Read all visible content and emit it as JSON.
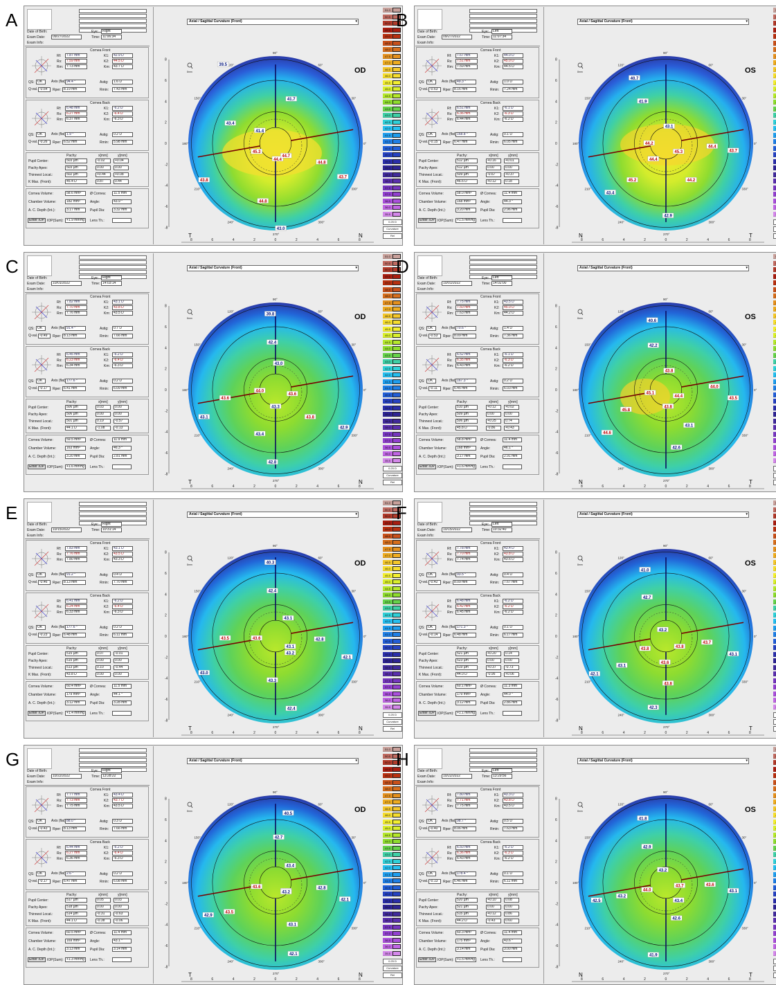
{
  "dropdown_title": "Axial / Sagittal Curvature (Front)",
  "labels": {
    "dob": "Date of Birth:",
    "exam_date": "Exam Date:",
    "exam_info": "Exam Info:",
    "eye": "Eye:",
    "time": "Time:",
    "cornea_front": "Cornea Front",
    "cornea_back": "Cornea Back",
    "rf": "Rf:",
    "rs": "Rs:",
    "rm": "Rm:",
    "k1": "K1:",
    "k2": "K2:",
    "km": "Km:",
    "qs": "QS:",
    "axis": "Axis (flat)",
    "astig": "Astig:",
    "qval": "Q-val. (8mm)",
    "rper": "Rper:",
    "rmin": "Rmin:",
    "pachy": "Pachy:",
    "xmm": "x[mm]",
    "ymm": "y[mm]",
    "pupil_center": "Pupil Center:",
    "pachy_apex": "Pachy Apex:",
    "thinnest": "Thinnest Locat.:",
    "kmax": "K Max. (Front):",
    "cornea_vol": "Cornea Volume:",
    "chamber_vol": "Chamber Volume:",
    "acd": "A. C. Depth (Int.):",
    "diam": "Ø Cornea:",
    "angle": "Angle:",
    "pupil_dia": "Pupil Dia:",
    "enter_iop": "Enter IOP",
    "iop_sum": "IOP(Sum):",
    "lens_th": "Lens Th.:",
    "deg90": "90°",
    "deg270": "270°",
    "deg60": "60°",
    "deg120": "120°",
    "deg30": "30°",
    "deg150": "150°",
    "deg180": "180°",
    "deg0": "0°",
    "deg210": "210°",
    "deg240": "240°",
    "deg300": "300°",
    "deg330": "330°",
    "ok": "OK",
    "mag": "8mm"
  },
  "scale": {
    "values": [
      "51.0",
      "50.5",
      "50.0",
      "49.5",
      "49.0",
      "48.5",
      "48.0",
      "47.5",
      "47.0",
      "46.5",
      "46.0",
      "45.5",
      "45.0",
      "44.5",
      "44.0",
      "43.5",
      "43.0",
      "42.5",
      "42.0",
      "41.5",
      "41.0",
      "40.5",
      "40.0",
      "39.5",
      "39.0",
      "38.5",
      "38.0",
      "37.5",
      "37.0",
      "36.5",
      "36.0",
      "35.5"
    ],
    "colors": [
      "#c8a09a",
      "#c06a60",
      "#b23a2a",
      "#a81d10",
      "#b83010",
      "#c8501a",
      "#d66e1c",
      "#e4901e",
      "#eeac20",
      "#f3c62a",
      "#f5dd2e",
      "#f2ee30",
      "#d9ef2c",
      "#b5e82c",
      "#8edc2e",
      "#66d24a",
      "#3fd0a6",
      "#2fd0d8",
      "#25bff0",
      "#1f9eee",
      "#1f7fe6",
      "#225ed8",
      "#2642c2",
      "#2a2eaa",
      "#2e2494",
      "#402a9c",
      "#5a2fae",
      "#7636c0",
      "#9240d0",
      "#aa50dc",
      "#c066e4",
      "#d488ea"
    ],
    "step": "0.25 D",
    "curvature": "Curvature",
    "rel": "Rel"
  },
  "panels": [
    {
      "letter": "A",
      "eye": "Right",
      "od": "OD",
      "date": "09/27/2022",
      "time": "11:06:34",
      "t": "T",
      "n": "N",
      "front": {
        "rf": "7.87 mm",
        "rs": "7.59 mm",
        "rm": "7.73 mm",
        "k1": "42.9 D",
        "k2": "44.5 D",
        "km": "43.7 D",
        "axis": "94.4 °",
        "astig": "1.6 D",
        "qval": "-0.64",
        "rper": "8.19 mm",
        "rmin": "7.43 mm"
      },
      "back": {
        "rf": "6.48 mm",
        "rs": "6.27 mm",
        "rm": "6.37 mm",
        "k1": "-6.2 D",
        "k2": "-6.4 D",
        "km": "-6.3 D",
        "axis": "1.9 °",
        "astig": "0.2 D",
        "qval": "-0.26",
        "rper": "6.52 mm",
        "rmin": "5.98 mm"
      },
      "pachy": {
        "pc": "503 µm",
        "pcx": "-0.02",
        "pcy": "+0.04",
        "pa": "503 µm",
        "pax": "0.00",
        "pay": "0.00",
        "th": "502 µm",
        "thx": "+0.44",
        "thy": "+0.08",
        "km": "45.4 D",
        "kmx": "0.87",
        "kmy": "0.44"
      },
      "vol": {
        "cv": "58.6 mm³",
        "dia": "11.5 mm",
        "chv": "182 mm³",
        "ang": "43.9 °",
        "acd": "3.17 mm",
        "pd": "3.32 mm",
        "iop": "+1.9 mmHg"
      },
      "vals": [
        [
          "39.5",
          -5,
          -7.5
        ],
        [
          "41.7",
          1.5,
          -4.2
        ],
        [
          "41.4",
          -1.5,
          -1.2
        ],
        [
          "43.4",
          -4.3,
          -1.9
        ],
        [
          "45.3",
          -1.8,
          0.8
        ],
        [
          "44.4",
          0.2,
          1.5
        ],
        [
          "44.8",
          4.4,
          1.8
        ],
        [
          "43.7",
          6.4,
          3.2
        ],
        [
          "43.8",
          -6.8,
          3.5
        ],
        [
          "44.8",
          -1.2,
          5.5
        ],
        [
          "43.0",
          0.5,
          8.1
        ],
        [
          "44.7",
          1,
          1.2
        ]
      ]
    },
    {
      "letter": "B",
      "eye": "Left",
      "od": "OS",
      "date": "09/27/2022",
      "time": "11:07:34",
      "t": "N",
      "n": "T",
      "front": {
        "rf": "7.67 mm",
        "rs": "7.51 mm",
        "rm": "7.59 mm",
        "k1": "44.0 D",
        "k2": "45.0 D",
        "km": "44.5 D",
        "axis": "49.3 °",
        "astig": "1.0 D",
        "qval": "-0.63",
        "rper": "8.16 mm",
        "rmin": "7.24 mm"
      },
      "back": {
        "rf": "6.51 mm",
        "rs": "6.36 mm",
        "rm": "6.44 mm",
        "k1": "-6.1 D",
        "k2": "-6.3 D",
        "km": "-6.2 D",
        "axis": "168.8 °",
        "astig": "0.1 D",
        "qval": "-0.15",
        "rper": "6.47 mm",
        "rmin": "6.05 mm"
      },
      "pachy": {
        "pc": "512 µm",
        "pcx": "+0.16",
        "pcy": "+0.01",
        "pa": "512 µm",
        "pax": "0.00",
        "pay": "0.00",
        "th": "509 µm",
        "thx": "-0.67",
        "thy": "+0.37",
        "km": "46.6 D",
        "kmx": "+0.12",
        "kmy": "0.18"
      },
      "vol": {
        "cv": "58.0 mm³",
        "dia": "11.4 mm",
        "chv": "168 mm³",
        "ang": "44.3 °",
        "acd": "3.20 mm",
        "pd": "2.96 mm",
        "iop": "+1.5 mmHg"
      },
      "vals": [
        [
          "40.7",
          -3,
          -6.2
        ],
        [
          "41.9",
          -2.2,
          -4
        ],
        [
          "43.1",
          0.3,
          -1.6
        ],
        [
          "44.2",
          -1.6,
          0
        ],
        [
          "45.3",
          1.2,
          0.8
        ],
        [
          "44.4",
          4.4,
          0.3
        ],
        [
          "43.7",
          6.4,
          0.7
        ],
        [
          "44.4",
          -1.2,
          1.5
        ],
        [
          "45.2",
          -3.2,
          3.5
        ],
        [
          "43.4",
          -5.3,
          4.7
        ],
        [
          "44.2",
          2.4,
          3.5
        ],
        [
          "42.9",
          0.2,
          6.9
        ]
      ]
    },
    {
      "letter": "C",
      "eye": "Right",
      "od": "OD",
      "date": "10/01/2022",
      "time": "14:03:14",
      "t": "T",
      "n": "N",
      "front": {
        "rf": "7.82 mm",
        "rs": "7.70 mm",
        "rm": "7.76 mm",
        "k1": "43.1 D",
        "k2": "43.8 D",
        "km": "43.5 D",
        "axis": "91.4 °",
        "astig": "0.7 D",
        "qval": "-0.49",
        "rper": "8.13 mm",
        "rmin": "7.66 mm"
      },
      "back": {
        "rf": "6.45 mm",
        "rs": "6.23 mm",
        "rm": "6.34 mm",
        "k1": "-6.2 D",
        "k2": "-6.4 D",
        "km": "-6.3 D",
        "axis": "177.6 °",
        "astig": "0.2 D",
        "qval": "-0.17",
        "rper": "6.41 mm",
        "rmin": "6.09 mm"
      },
      "pachy": {
        "pc": "506 µm",
        "pcx": "0.03",
        "pcy": "0.00",
        "pa": "506 µm",
        "pax": "0.00",
        "pay": "0.00",
        "th": "501 µm",
        "thx": "0.19",
        "thy": "-0.57",
        "km": "44.1 D",
        "kmx": "-1.08",
        "kmy": "-0.13"
      },
      "vol": {
        "cv": "59.5 mm³",
        "dia": "11.9 mm",
        "chv": "163 mm³",
        "ang": "46.3 °",
        "acd": "3.20 mm",
        "pd": "2.81 mm",
        "iop": "+1.6 mmHg"
      },
      "vals": [
        [
          "39.8",
          -0.5,
          -7.2
        ],
        [
          "42.4",
          -0.3,
          -4.5
        ],
        [
          "43.0",
          0.3,
          -2.5
        ],
        [
          "44.0",
          -1.5,
          0.1
        ],
        [
          "43.6",
          -4.8,
          0.8
        ],
        [
          "43.3",
          0,
          1.6
        ],
        [
          "43.6",
          1.6,
          0.4
        ],
        [
          "43.8",
          3.3,
          2.6
        ],
        [
          "42.9",
          6.5,
          3.6
        ],
        [
          "43.1",
          -6.8,
          2.6
        ],
        [
          "43.4",
          -1.5,
          4.2
        ],
        [
          "42.8",
          -0.3,
          6.9
        ]
      ]
    },
    {
      "letter": "D",
      "eye": "Left",
      "od": "OS",
      "date": "10/01/2022",
      "time": "14:02:00",
      "t": "N",
      "n": "T",
      "front": {
        "rf": "7.75 mm",
        "rs": "7.50 mm",
        "rm": "7.63 mm",
        "k1": "43.5 D",
        "k2": "45.0 D",
        "km": "44.2 D",
        "axis": "70.6 °",
        "astig": "1.4 D",
        "qval": "-0.53",
        "rper": "8.09 mm",
        "rmin": "7.36 mm"
      },
      "back": {
        "rf": "6.52 mm",
        "rs": "6.35 mm",
        "rm": "6.43 mm",
        "k1": "-6.1 D",
        "k2": "-6.3 D",
        "km": "-6.2 D",
        "axis": "167.3 °",
        "astig": "0.2 D",
        "qval": "-0.11",
        "rper": "6.45 mm",
        "rmin": "6.03 mm"
      },
      "pachy": {
        "pc": "510 µm",
        "pcx": "+0.12",
        "pcy": "+0.02",
        "pa": "509 µm",
        "pax": "0.00",
        "pay": "0.00",
        "th": "506 µm",
        "thx": "+0.25",
        "thy": "0.74",
        "km": "45.8 D",
        "kmx": "-0.86",
        "kmy": "+0.43"
      },
      "vol": {
        "cv": "58.8 mm³",
        "dia": "11.4 mm",
        "chv": "168 mm³",
        "ang": "46.1 °",
        "acd": "3.17 mm",
        "pd": "2.91 mm",
        "iop": "+1.6 mmHg"
      },
      "vals": [
        [
          "40.6",
          -1.3,
          -6.6
        ],
        [
          "42.2",
          -1.2,
          -4.2
        ],
        [
          "43.8",
          0.3,
          -1.8
        ],
        [
          "45.1",
          -1.5,
          0.3
        ],
        [
          "44.4",
          1.2,
          0.6
        ],
        [
          "44.0",
          4.6,
          -0.3
        ],
        [
          "43.5",
          6.4,
          0.8
        ],
        [
          "43.8",
          0.2,
          1.6
        ],
        [
          "45.8",
          -3.8,
          1.9
        ],
        [
          "44.6",
          -5.6,
          4.1
        ],
        [
          "43.1",
          2.2,
          3.4
        ],
        [
          "42.6",
          1,
          5.5
        ]
      ]
    },
    {
      "letter": "E",
      "eye": "Right",
      "od": "OD",
      "date": "10/15/2022",
      "time": "10:31:14",
      "t": "T",
      "n": "N",
      "front": {
        "rf": "7.83 mm",
        "rs": "7.76 mm",
        "rm": "7.80 mm",
        "k1": "43.1 D",
        "k2": "43.5 D",
        "km": "43.3 D",
        "axis": "91.2 °",
        "astig": "0.4 D",
        "qval": "-0.46",
        "rper": "8.13 mm",
        "rmin": "7.70 mm"
      },
      "back": {
        "rf": "6.41 mm",
        "rs": "6.24 mm",
        "rm": "6.33 mm",
        "k1": "-6.2 D",
        "k2": "-6.4 D",
        "km": "-6.3 D",
        "axis": "177.6 °",
        "astig": "0.2 D",
        "qval": "-0.23",
        "rper": "6.48 mm",
        "rmin": "6.11 mm"
      },
      "pachy": {
        "pc": "515 µm",
        "pcx": "0.07",
        "pcy": "-0.01",
        "pa": "515 µm",
        "pax": "0.00",
        "pay": "0.00",
        "th": "513 µm",
        "thx": "0.10",
        "thy": "-0.44",
        "km": "43.8 D",
        "kmx": "0.00",
        "kmy": "0.00"
      },
      "vol": {
        "cv": "60.4 mm³",
        "dia": "11.5 mm",
        "chv": "179 mm³",
        "ang": "44.1 °",
        "acd": "3.12 mm",
        "pd": "3.28 mm",
        "iop": "+1.4 mmHg"
      },
      "vals": [
        [
          "40.3",
          -0.5,
          -7
        ],
        [
          "42.4",
          -0.3,
          -4.3
        ],
        [
          "43.1",
          1.2,
          -1.7
        ],
        [
          "43.5",
          -4.8,
          0.2
        ],
        [
          "43.6",
          -1.8,
          0.2
        ],
        [
          "43.1",
          1.4,
          1
        ],
        [
          "43.2",
          1.4,
          1.6
        ],
        [
          "42.8",
          4.2,
          0.3
        ],
        [
          "42.1",
          6.8,
          2
        ],
        [
          "43.0",
          -6.8,
          3.5
        ],
        [
          "43.3",
          -0.3,
          4.2
        ],
        [
          "42.4",
          1.5,
          6.9
        ]
      ]
    },
    {
      "letter": "F",
      "eye": "Left",
      "od": "OS",
      "date": "10/15/2022",
      "time": "10:32:40",
      "t": "N",
      "n": "T",
      "front": {
        "rf": "7.78 mm",
        "rs": "7.70 mm",
        "rm": "7.74 mm",
        "k1": "43.4 D",
        "k2": "43.8 D",
        "km": "43.6 D",
        "axis": "93.5 °",
        "astig": "0.4 D",
        "qval": "-0.42",
        "rper": "8.09 mm",
        "rmin": "7.67 mm"
      },
      "back": {
        "rf": "6.48 mm",
        "rs": "6.42 mm",
        "rm": "6.45 mm",
        "k1": "-6.2 D",
        "k2": "-6.2 D",
        "km": "-6.2 D",
        "axis": "171.3 °",
        "astig": "0.1 D",
        "qval": "-0.14",
        "rper": "6.48 mm",
        "rmin": "6.17 mm"
      },
      "pachy": {
        "pc": "521 µm",
        "pcx": "+0.20",
        "pcy": "0.14",
        "pa": "523 µm",
        "pax": "0.00",
        "pay": "0.00",
        "th": "519 µm",
        "thx": "+0.37",
        "thy": "-0.73",
        "km": "44.0 D",
        "kmx": "-0.95",
        "kmy": "+0.06"
      },
      "vol": {
        "cv": "60.1 mm³",
        "dia": "11.3 mm",
        "chv": "179 mm³",
        "ang": "44.0 °",
        "acd": "3.12 mm",
        "pd": "2.86 mm",
        "iop": "+1.1 mmHg"
      },
      "vals": [
        [
          "41.0",
          -2,
          -6.3
        ],
        [
          "42.7",
          -1.8,
          -3.7
        ],
        [
          "43.2",
          -0.3,
          -0.6
        ],
        [
          "43.8",
          -2,
          1.2
        ],
        [
          "43.8",
          1.3,
          1
        ],
        [
          "43.7",
          3.9,
          0.6
        ],
        [
          "43.1",
          6.4,
          1.7
        ],
        [
          "43.1",
          -4.2,
          2.8
        ],
        [
          "42.1",
          -6.8,
          3.6
        ],
        [
          "43.6",
          -0.1,
          2.5
        ],
        [
          "43.8",
          0.2,
          4.5
        ],
        [
          "42.3",
          -1.2,
          6.8
        ]
      ]
    },
    {
      "letter": "G",
      "eye": "Right",
      "od": "OD",
      "date": "10/22/2022",
      "time": "13:28:22",
      "t": "T",
      "n": "N",
      "front": {
        "rf": "7.77 mm",
        "rs": "7.73 mm",
        "rm": "7.75 mm",
        "k1": "43.4 D",
        "k2": "43.7 D",
        "km": "43.5 D",
        "axis": "88.0 °",
        "astig": "0.3 D",
        "qval": "-0.43",
        "rper": "8.13 mm",
        "rmin": "7.66 mm"
      },
      "back": {
        "rf": "6.44 mm",
        "rs": "6.27 mm",
        "rm": "6.36 mm",
        "k1": "-6.2 D",
        "k2": "-6.4 D",
        "km": "-6.3 D",
        "axis": "2.6 °",
        "astig": "0.2 D",
        "qval": "-0.17",
        "rper": "6.47 mm",
        "rmin": "6.08 mm"
      },
      "pachy": {
        "pc": "517 µm",
        "pcx": "0.05",
        "pcy": "0.03",
        "pa": "518 µm",
        "pax": "0.00",
        "pay": "0.00",
        "th": "514 µm",
        "thx": "-0.31",
        "thy": "-0.63",
        "km": "44.1 D",
        "kmx": "-0.38",
        "kmy": "-0.06"
      },
      "vol": {
        "cv": "60.5 mm³",
        "dia": "11.4 mm",
        "chv": "169 mm³",
        "ang": "43.1 °",
        "acd": "3.13 mm",
        "pd": "3.14 mm",
        "iop": "+1.3 mmHg"
      },
      "vals": [
        [
          "40.5",
          1.2,
          -6.6
        ],
        [
          "42.7",
          0.3,
          -4.3
        ],
        [
          "43.4",
          1.4,
          -1.6
        ],
        [
          "43.6",
          -1.8,
          0.4
        ],
        [
          "43.5",
          -4.4,
          2.8
        ],
        [
          "42.8",
          4.4,
          0.5
        ],
        [
          "42.1",
          6.6,
          1.6
        ],
        [
          "43.5",
          1,
          0.8
        ],
        [
          "42.9",
          -6.4,
          3.1
        ],
        [
          "43.2",
          1,
          0.9
        ],
        [
          "43.1",
          1.6,
          4
        ],
        [
          "42.1",
          1.7,
          6.8
        ]
      ]
    },
    {
      "letter": "H",
      "eye": "Left",
      "od": "OS",
      "date": "10/22/2022",
      "time": "13:29:56",
      "t": "N",
      "n": "T",
      "front": {
        "rf": "7.80 mm",
        "rs": "7.71 mm",
        "rm": "7.75 mm",
        "k1": "43.3 D",
        "k2": "43.8 D",
        "km": "43.5 D",
        "axis": "98.7 °",
        "astig": "0.5 D",
        "qval": "-0.40",
        "rper": "8.06 mm",
        "rmin": "7.63 mm"
      },
      "back": {
        "rf": "6.50 mm",
        "rs": "6.36 mm",
        "rm": "6.43 mm",
        "k1": "-6.2 D",
        "k2": "-6.3 D",
        "km": "-6.2 D",
        "axis": "178.4 °",
        "astig": "0.1 D",
        "qval": "-0.13",
        "rper": "6.46 mm",
        "rmin": "6.11 mm"
      },
      "pachy": {
        "pc": "520 µm",
        "pcx": "+0.10",
        "pcy": "0.08",
        "pa": "521 µm",
        "pax": "0.00",
        "pay": "0.00",
        "th": "515 µm",
        "thx": "+0.12",
        "thy": "0.86",
        "km": "44.2 D",
        "kmx": "-0.43",
        "kmy": "0.60"
      },
      "vol": {
        "cv": "60.3 mm³",
        "dia": "11.4 mm",
        "chv": "175 mm³",
        "ang": "43.6 °",
        "acd": "3.14 mm",
        "pd": "3.00 mm",
        "iop": "+1.5 mmHg"
      },
      "vals": [
        [
          "41.8",
          -2.2,
          -6.1
        ],
        [
          "42.9",
          -1.8,
          -3.4
        ],
        [
          "43.2",
          -0.3,
          -1.2
        ],
        [
          "44.0",
          -1.8,
          0.7
        ],
        [
          "43.7",
          1.3,
          0.3
        ],
        [
          "43.6",
          4.2,
          0.2
        ],
        [
          "43.1",
          6.4,
          0.8
        ],
        [
          "43.2",
          -4.2,
          1.3
        ],
        [
          "42.5",
          -6.6,
          1.7
        ],
        [
          "43.4",
          1.2,
          1.7
        ],
        [
          "42.6",
          1,
          3.4
        ],
        [
          "41.9",
          -1.2,
          6.9
        ]
      ]
    }
  ]
}
